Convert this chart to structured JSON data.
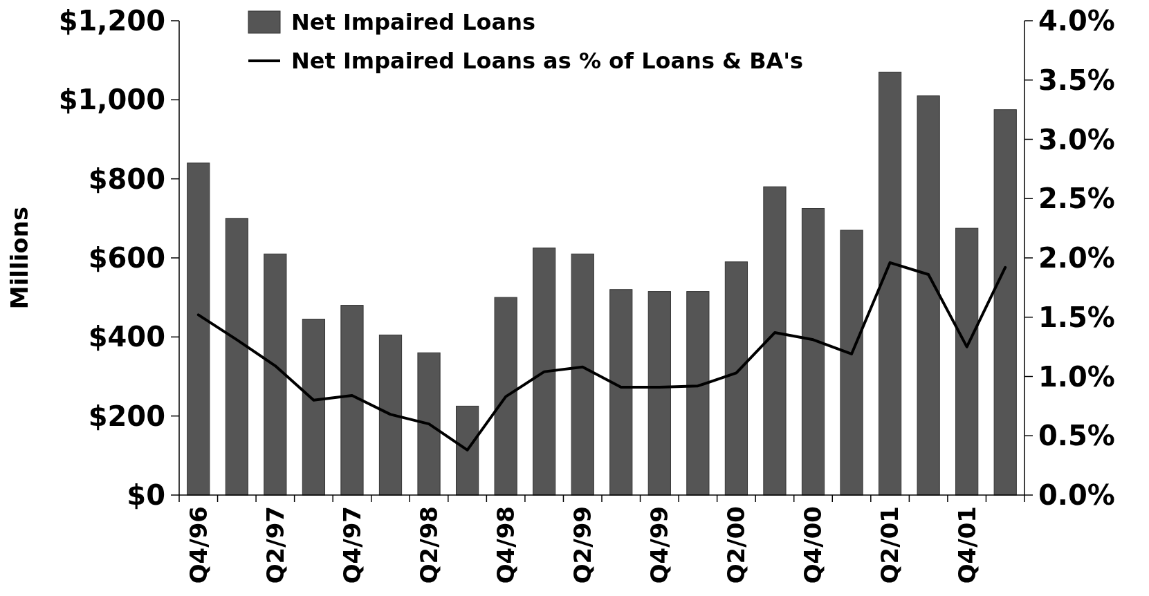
{
  "chart_data": {
    "type": "bar",
    "ylabel": "Millions",
    "categories": [
      "Q4/96",
      null,
      "Q2/97",
      null,
      "Q4/97",
      null,
      "Q2/98",
      null,
      "Q4/98",
      null,
      "Q2/99",
      null,
      "Q4/99",
      null,
      "Q2/00",
      null,
      "Q4/00",
      null,
      "Q2/01",
      null,
      "Q4/01",
      null
    ],
    "series": [
      {
        "name": "Net Impaired Loans",
        "color": "#555555",
        "values": [
          840,
          700,
          610,
          445,
          480,
          405,
          360,
          225,
          500,
          625,
          610,
          520,
          515,
          515,
          590,
          780,
          725,
          670,
          1070,
          1010,
          675,
          975
        ]
      },
      {
        "name": "Net Impaired Loans as % of Loans & BA's",
        "type": "line",
        "axis": "y2",
        "color": "#000000",
        "values": [
          1.52,
          1.31,
          1.09,
          0.8,
          0.84,
          0.68,
          0.6,
          0.38,
          0.83,
          1.04,
          1.08,
          0.91,
          0.91,
          0.92,
          1.03,
          1.37,
          1.31,
          1.19,
          1.96,
          1.86,
          1.25,
          1.92
        ]
      }
    ],
    "ylim": [
      0,
      1200
    ],
    "yticks": [
      {
        "value": 0,
        "label": "$0"
      },
      {
        "value": 200,
        "label": "$200"
      },
      {
        "value": 400,
        "label": "$400"
      },
      {
        "value": 600,
        "label": "$600"
      },
      {
        "value": 800,
        "label": "$800"
      },
      {
        "value": 1000,
        "label": "$1,000"
      },
      {
        "value": 1200,
        "label": "$1,200"
      }
    ],
    "y2lim": [
      0,
      4
    ],
    "y2ticks": [
      {
        "value": 0,
        "label": "0.0%"
      },
      {
        "value": 0.5,
        "label": "0.5%"
      },
      {
        "value": 1,
        "label": "1.0%"
      },
      {
        "value": 1.5,
        "label": "1.5%"
      },
      {
        "value": 2,
        "label": "2.0%"
      },
      {
        "value": 2.5,
        "label": "2.5%"
      },
      {
        "value": 3,
        "label": "3.0%"
      },
      {
        "value": 3.5,
        "label": "3.5%"
      },
      {
        "value": 4,
        "label": "4.0%"
      }
    ],
    "grid": false,
    "legend": "top left",
    "marker": "none",
    "line_style": "solid"
  }
}
